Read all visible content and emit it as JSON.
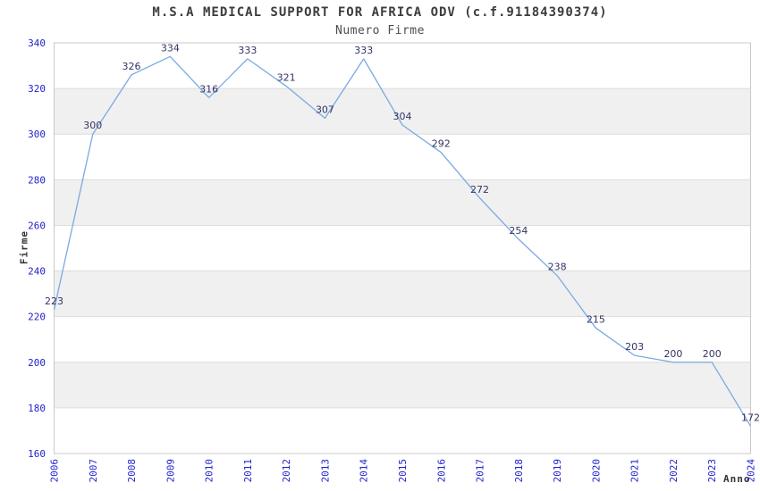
{
  "chart_data": {
    "type": "line",
    "title": "M.S.A MEDICAL SUPPORT FOR AFRICA ODV (c.f.91184390374)",
    "subtitle": "Numero Firme",
    "xlabel": "Anno",
    "ylabel": "Firme",
    "x": [
      "2006",
      "2007",
      "2008",
      "2009",
      "2010",
      "2011",
      "2012",
      "2013",
      "2014",
      "2015",
      "2016",
      "2017",
      "2018",
      "2019",
      "2020",
      "2021",
      "2022",
      "2023",
      "2024"
    ],
    "values": [
      223,
      300,
      326,
      334,
      316,
      333,
      321,
      307,
      333,
      304,
      292,
      272,
      254,
      238,
      215,
      203,
      200,
      200,
      172
    ],
    "ylim": [
      160,
      340
    ],
    "yticks": [
      160,
      180,
      200,
      220,
      240,
      260,
      280,
      300,
      320,
      340
    ],
    "grid": "horizontal-alternating-bands",
    "legend": "none",
    "colors": {
      "line": "#78aae1",
      "tick_label": "#2222cc",
      "data_label": "#333366",
      "band_gray": "#f0f0f0",
      "grid_line": "#dcdcdc",
      "plot_border": "#c8c8c8",
      "title": "#3c3c3c",
      "subtitle": "#4d4d4d",
      "axis_title": "#333333",
      "background": "#ffffff"
    }
  }
}
